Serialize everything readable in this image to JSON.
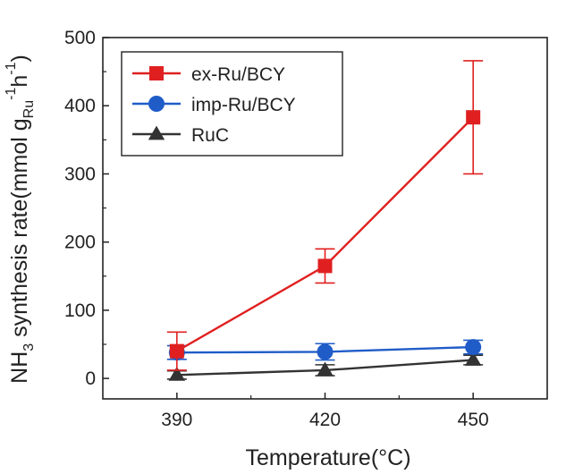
{
  "chart_data": {
    "type": "line",
    "title": "",
    "xlabel": "Temperature(°C)",
    "ylabel": {
      "base": "NH",
      "base_sub": "3",
      "text": " synthesis rate(mmol g",
      "unit_sub": "Ru",
      "unit_sup": "-1",
      "tail": "h",
      "tail_sup": "-1",
      "close": ")"
    },
    "x": [
      390,
      420,
      450
    ],
    "x_ticks": [
      "390",
      "420",
      "450"
    ],
    "xlim": [
      375,
      465
    ],
    "ylim": [
      -30,
      500
    ],
    "y_ticks": [
      "0",
      "100",
      "200",
      "300",
      "400",
      "500"
    ],
    "grid": false,
    "legend_position": "top-left",
    "series": [
      {
        "name": "ex-Ru/BCY",
        "color": "#e02020",
        "marker": "square",
        "values": [
          40,
          165,
          383
        ],
        "errors": [
          28,
          25,
          83
        ]
      },
      {
        "name": "imp-Ru/BCY",
        "color": "#1f5cc8",
        "marker": "circle",
        "values": [
          38,
          39,
          46
        ],
        "errors": [
          10,
          12,
          10
        ]
      },
      {
        "name": "RuC",
        "color": "#333333",
        "marker": "triangle",
        "values": [
          5,
          12,
          27
        ],
        "errors": [
          6,
          8,
          7
        ]
      }
    ]
  }
}
